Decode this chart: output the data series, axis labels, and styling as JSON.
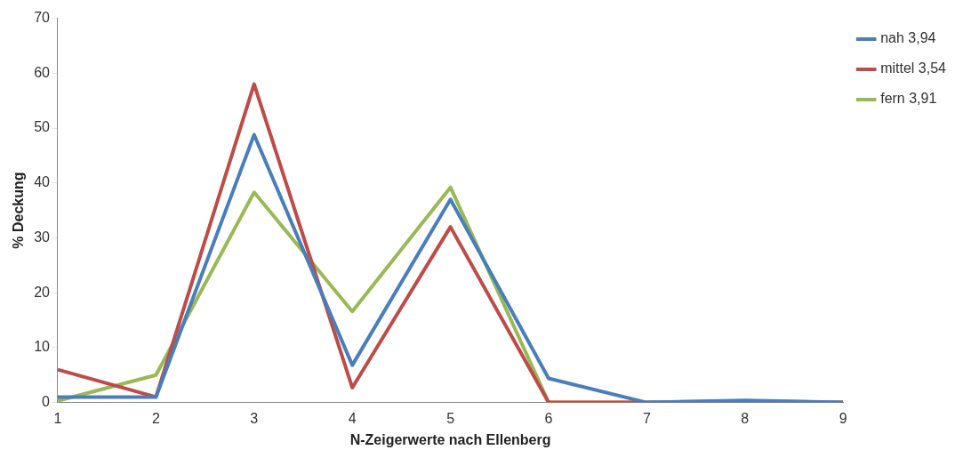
{
  "chart_data": {
    "type": "line",
    "xlabel": "N-Zeigerwerte nach Ellenberg",
    "ylabel": "% Deckung",
    "x": [
      1,
      2,
      3,
      4,
      5,
      6,
      7,
      8,
      9
    ],
    "xlim": [
      1,
      9
    ],
    "xticks": [
      1,
      2,
      3,
      4,
      5,
      6,
      7,
      8,
      9
    ],
    "ylim": [
      0,
      70
    ],
    "yticks": [
      0,
      10,
      20,
      30,
      40,
      50,
      60,
      70
    ],
    "grid": false,
    "legend": "top right",
    "marker": "none",
    "line_style": "solid",
    "series": [
      {
        "name": "nah 3,94",
        "color": "#4a7ebb",
        "values": [
          1,
          1,
          48.8,
          6.8,
          37,
          4.4,
          0,
          0.4,
          0
        ]
      },
      {
        "name": "mittel 3,54",
        "color": "#be4b48",
        "values": [
          6,
          1,
          58,
          2.7,
          32,
          0,
          0,
          0,
          0
        ]
      },
      {
        "name": "fern 3,91",
        "color": "#98b954",
        "values": [
          0.3,
          5,
          38.3,
          16.6,
          39.2,
          0,
          0,
          0.3,
          0
        ]
      }
    ]
  }
}
